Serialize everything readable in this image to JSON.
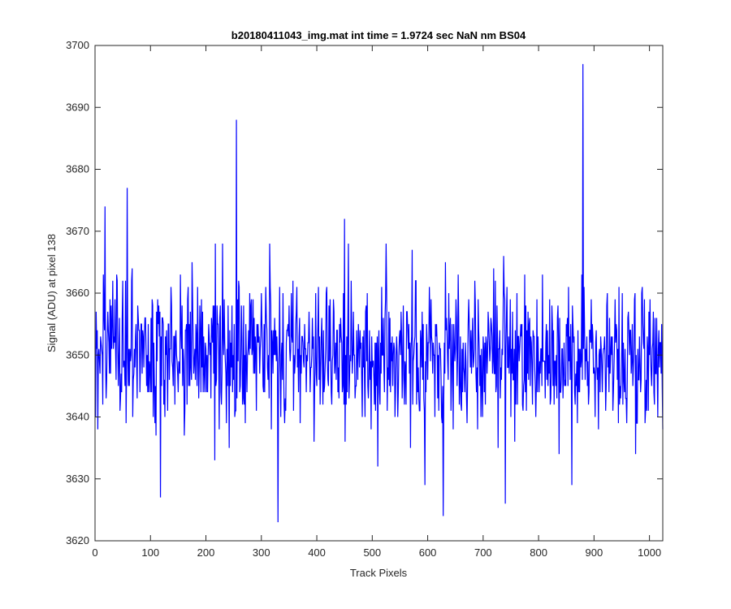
{
  "chart_data": {
    "type": "line",
    "title": "b20180411043_img.mat int time = 1.9724 sec  NaN nm BS04",
    "xlabel": "Track Pixels",
    "ylabel": "Signal (ADU) at pixel 138",
    "xlim": [
      0,
      1024
    ],
    "ylim": [
      3620,
      3700
    ],
    "xticks": [
      0,
      100,
      200,
      300,
      400,
      500,
      600,
      700,
      800,
      900,
      1000
    ],
    "yticks": [
      3620,
      3630,
      3640,
      3650,
      3660,
      3670,
      3680,
      3690,
      3700
    ],
    "grid": false,
    "legend": "none",
    "series": [
      {
        "color": "#0000ff",
        "noise_mean": 3650,
        "noise_std": 6,
        "x_range": [
          1,
          1024
        ],
        "notable_points": [
          {
            "x": 5,
            "y": 3638
          },
          {
            "x": 18,
            "y": 3674
          },
          {
            "x": 58,
            "y": 3677
          },
          {
            "x": 118,
            "y": 3627
          },
          {
            "x": 255,
            "y": 3688
          },
          {
            "x": 330,
            "y": 3623
          },
          {
            "x": 450,
            "y": 3672
          },
          {
            "x": 595,
            "y": 3629
          },
          {
            "x": 628,
            "y": 3624
          },
          {
            "x": 740,
            "y": 3626
          },
          {
            "x": 860,
            "y": 3629
          },
          {
            "x": 880,
            "y": 3697
          }
        ]
      }
    ]
  },
  "colors": {
    "line": "#0000ff",
    "axes": "#262626",
    "background": "#ffffff"
  }
}
